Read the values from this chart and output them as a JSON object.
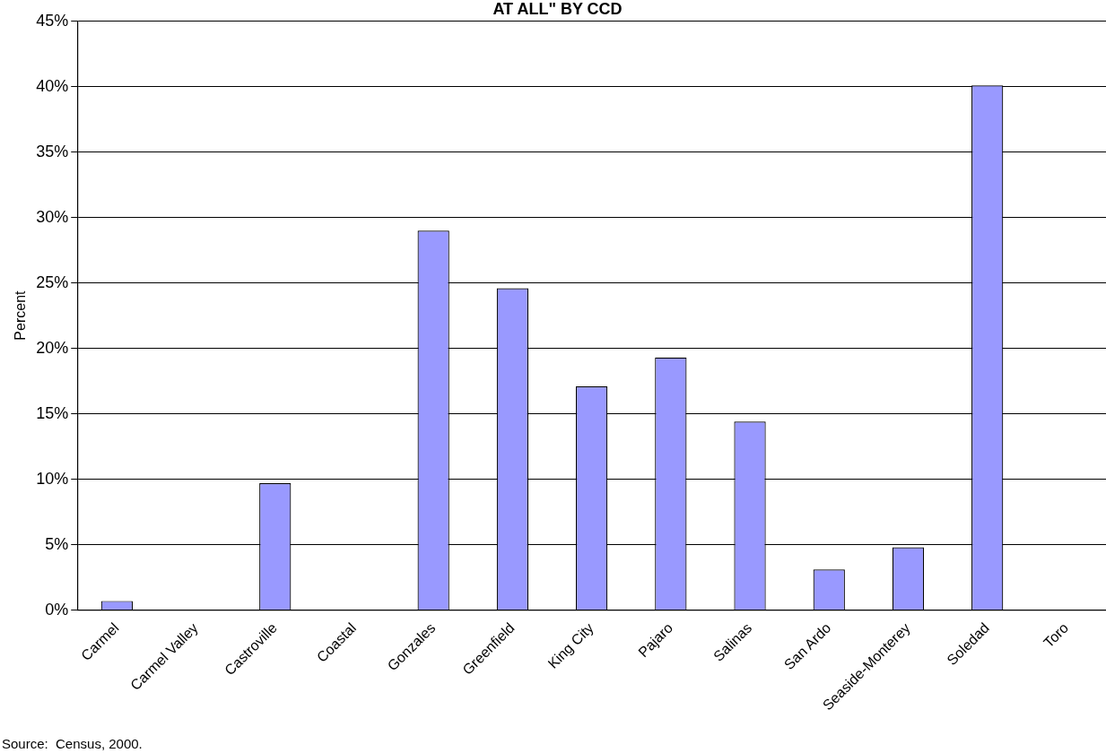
{
  "chart_data": {
    "type": "bar",
    "title": "AT ALL\" BY CCD",
    "categories": [
      "Carmel",
      "Carmel Valley",
      "Castroville",
      "Coastal",
      "Gonzales",
      "Greenfield",
      "King City",
      "Pajaro",
      "Salinas",
      "San Ardo",
      "Seaside-Monterey",
      "Soledad",
      "Toro"
    ],
    "values": [
      0.7,
      0,
      9.7,
      0,
      29.0,
      24.6,
      17.1,
      19.3,
      14.4,
      3.1,
      4.8,
      40.1,
      0
    ],
    "color": "#9999ff",
    "ylabel": "Percent",
    "ylim": [
      0,
      45
    ],
    "yticks": [
      {
        "value": 0,
        "label": "0%"
      },
      {
        "value": 5,
        "label": "5%"
      },
      {
        "value": 10,
        "label": "10%"
      },
      {
        "value": 15,
        "label": "15%"
      },
      {
        "value": 20,
        "label": "20%"
      },
      {
        "value": 25,
        "label": "25%"
      },
      {
        "value": 30,
        "label": "30%"
      },
      {
        "value": 35,
        "label": "35%"
      },
      {
        "value": 40,
        "label": "40%"
      },
      {
        "value": 45,
        "label": "45%"
      }
    ],
    "grid": "y",
    "legend": false,
    "annotations": [
      "Source:  Census, 2000."
    ]
  }
}
